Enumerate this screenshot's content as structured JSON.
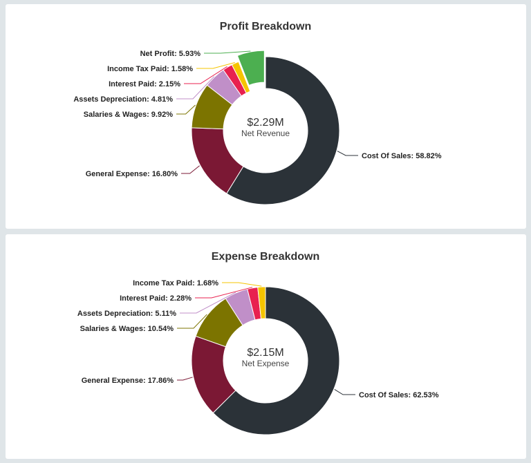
{
  "chart_data": [
    {
      "type": "pie",
      "title": "Profit Breakdown",
      "center_value": "$2.29M",
      "center_caption": "Net Revenue",
      "slices": [
        {
          "name": "Cost Of Sales",
          "value": 58.82,
          "label": "Cost Of Sales: 58.82%",
          "color": "#2b3238"
        },
        {
          "name": "General Expense",
          "value": 16.8,
          "label": "General Expense: 16.80%",
          "color": "#7b1834"
        },
        {
          "name": "Salaries & Wages",
          "value": 9.92,
          "label": "Salaries & Wages: 9.92%",
          "color": "#7c7400"
        },
        {
          "name": "Assets Depreciation",
          "value": 4.81,
          "label": "Assets Depreciation: 4.81%",
          "color": "#c08fc8"
        },
        {
          "name": "Interest Paid",
          "value": 2.15,
          "label": "Interest Paid: 2.15%",
          "color": "#e8214f"
        },
        {
          "name": "Income Tax Paid",
          "value": 1.58,
          "label": "Income Tax Paid: 1.58%",
          "color": "#f5c400"
        },
        {
          "name": "Net Profit",
          "value": 5.93,
          "label": "Net Profit: 5.93%",
          "color": "#4caf50",
          "exploded": true
        }
      ]
    },
    {
      "type": "pie",
      "title": "Expense Breakdown",
      "center_value": "$2.15M",
      "center_caption": "Net Expense",
      "slices": [
        {
          "name": "Cost Of Sales",
          "value": 62.53,
          "label": "Cost Of Sales: 62.53%",
          "color": "#2b3238"
        },
        {
          "name": "General Expense",
          "value": 17.86,
          "label": "General Expense: 17.86%",
          "color": "#7b1834"
        },
        {
          "name": "Salaries & Wages",
          "value": 10.54,
          "label": "Salaries & Wages: 10.54%",
          "color": "#7c7400"
        },
        {
          "name": "Assets Depreciation",
          "value": 5.11,
          "label": "Assets Depreciation: 5.11%",
          "color": "#c08fc8"
        },
        {
          "name": "Interest Paid",
          "value": 2.28,
          "label": "Interest Paid: 2.28%",
          "color": "#e8214f"
        },
        {
          "name": "Income Tax Paid",
          "value": 1.68,
          "label": "Income Tax Paid: 1.68%",
          "color": "#f5c400"
        }
      ]
    }
  ]
}
